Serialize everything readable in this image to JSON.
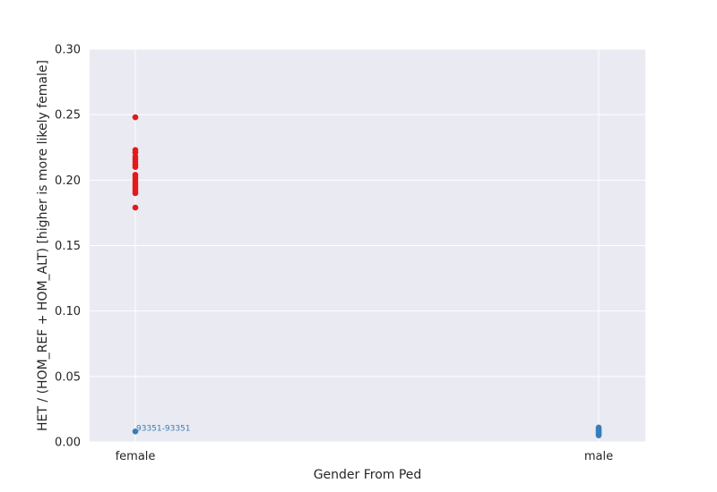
{
  "chart_data": {
    "type": "scatter",
    "xlabel": "Gender From Ped",
    "ylabel": "HET / (HOM_REF + HOM_ALT) [higher is more likely female]",
    "categories": [
      "female",
      "male"
    ],
    "ylim": [
      0.0,
      0.3
    ],
    "yticks": [
      "0.00",
      "0.05",
      "0.10",
      "0.15",
      "0.20",
      "0.25",
      "0.30"
    ],
    "grid": true,
    "colors": {
      "background": "#eaeaf2",
      "grid": "#ffffff",
      "female_points": "#e31a1c",
      "male_points": "#377eb8"
    },
    "series": [
      {
        "color": "#e31a1c",
        "points": [
          {
            "x": "female",
            "y": 0.248
          },
          {
            "x": "female",
            "y": 0.223
          },
          {
            "x": "female",
            "y": 0.221
          },
          {
            "x": "female",
            "y": 0.218
          },
          {
            "x": "female",
            "y": 0.216
          },
          {
            "x": "female",
            "y": 0.214
          },
          {
            "x": "female",
            "y": 0.212
          },
          {
            "x": "female",
            "y": 0.21
          },
          {
            "x": "female",
            "y": 0.204
          },
          {
            "x": "female",
            "y": 0.202
          },
          {
            "x": "female",
            "y": 0.2
          },
          {
            "x": "female",
            "y": 0.198
          },
          {
            "x": "female",
            "y": 0.196
          },
          {
            "x": "female",
            "y": 0.194
          },
          {
            "x": "female",
            "y": 0.192
          },
          {
            "x": "female",
            "y": 0.19
          },
          {
            "x": "female",
            "y": 0.179
          }
        ]
      },
      {
        "color": "#377eb8",
        "points": [
          {
            "x": "female",
            "y": 0.008
          },
          {
            "x": "male",
            "y": 0.011
          },
          {
            "x": "male",
            "y": 0.01
          },
          {
            "x": "male",
            "y": 0.009
          },
          {
            "x": "male",
            "y": 0.008
          },
          {
            "x": "male",
            "y": 0.007
          },
          {
            "x": "male",
            "y": 0.006
          },
          {
            "x": "male",
            "y": 0.005
          }
        ]
      }
    ],
    "annotations": [
      {
        "text": "93351-93351",
        "x": "female",
        "y": 0.008,
        "color": "#377eb8"
      }
    ]
  }
}
